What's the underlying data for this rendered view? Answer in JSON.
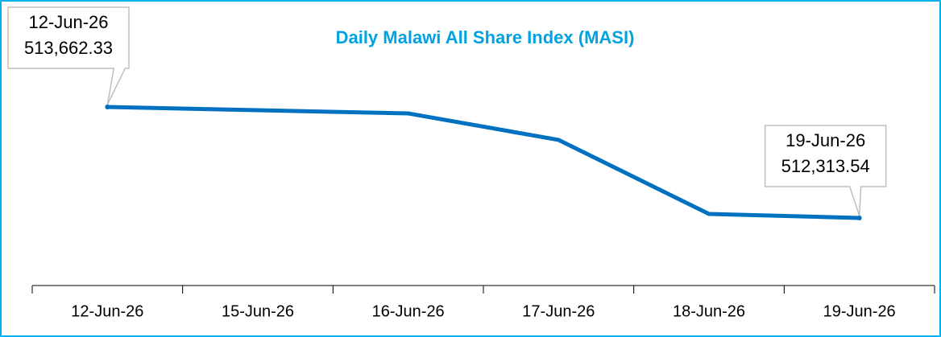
{
  "chart_data": {
    "type": "line",
    "title": "Daily Malawi All Share Index (MASI)",
    "categories": [
      "12-Jun-26",
      "15-Jun-26",
      "16-Jun-26",
      "17-Jun-26",
      "18-Jun-26",
      "19-Jun-26"
    ],
    "values": [
      513662.33,
      513623,
      513584,
      513262,
      512362,
      512313.54
    ],
    "value_labels": [
      "513,662.33",
      null,
      null,
      null,
      null,
      "512,313.54"
    ],
    "color": "#0070c0"
  }
}
